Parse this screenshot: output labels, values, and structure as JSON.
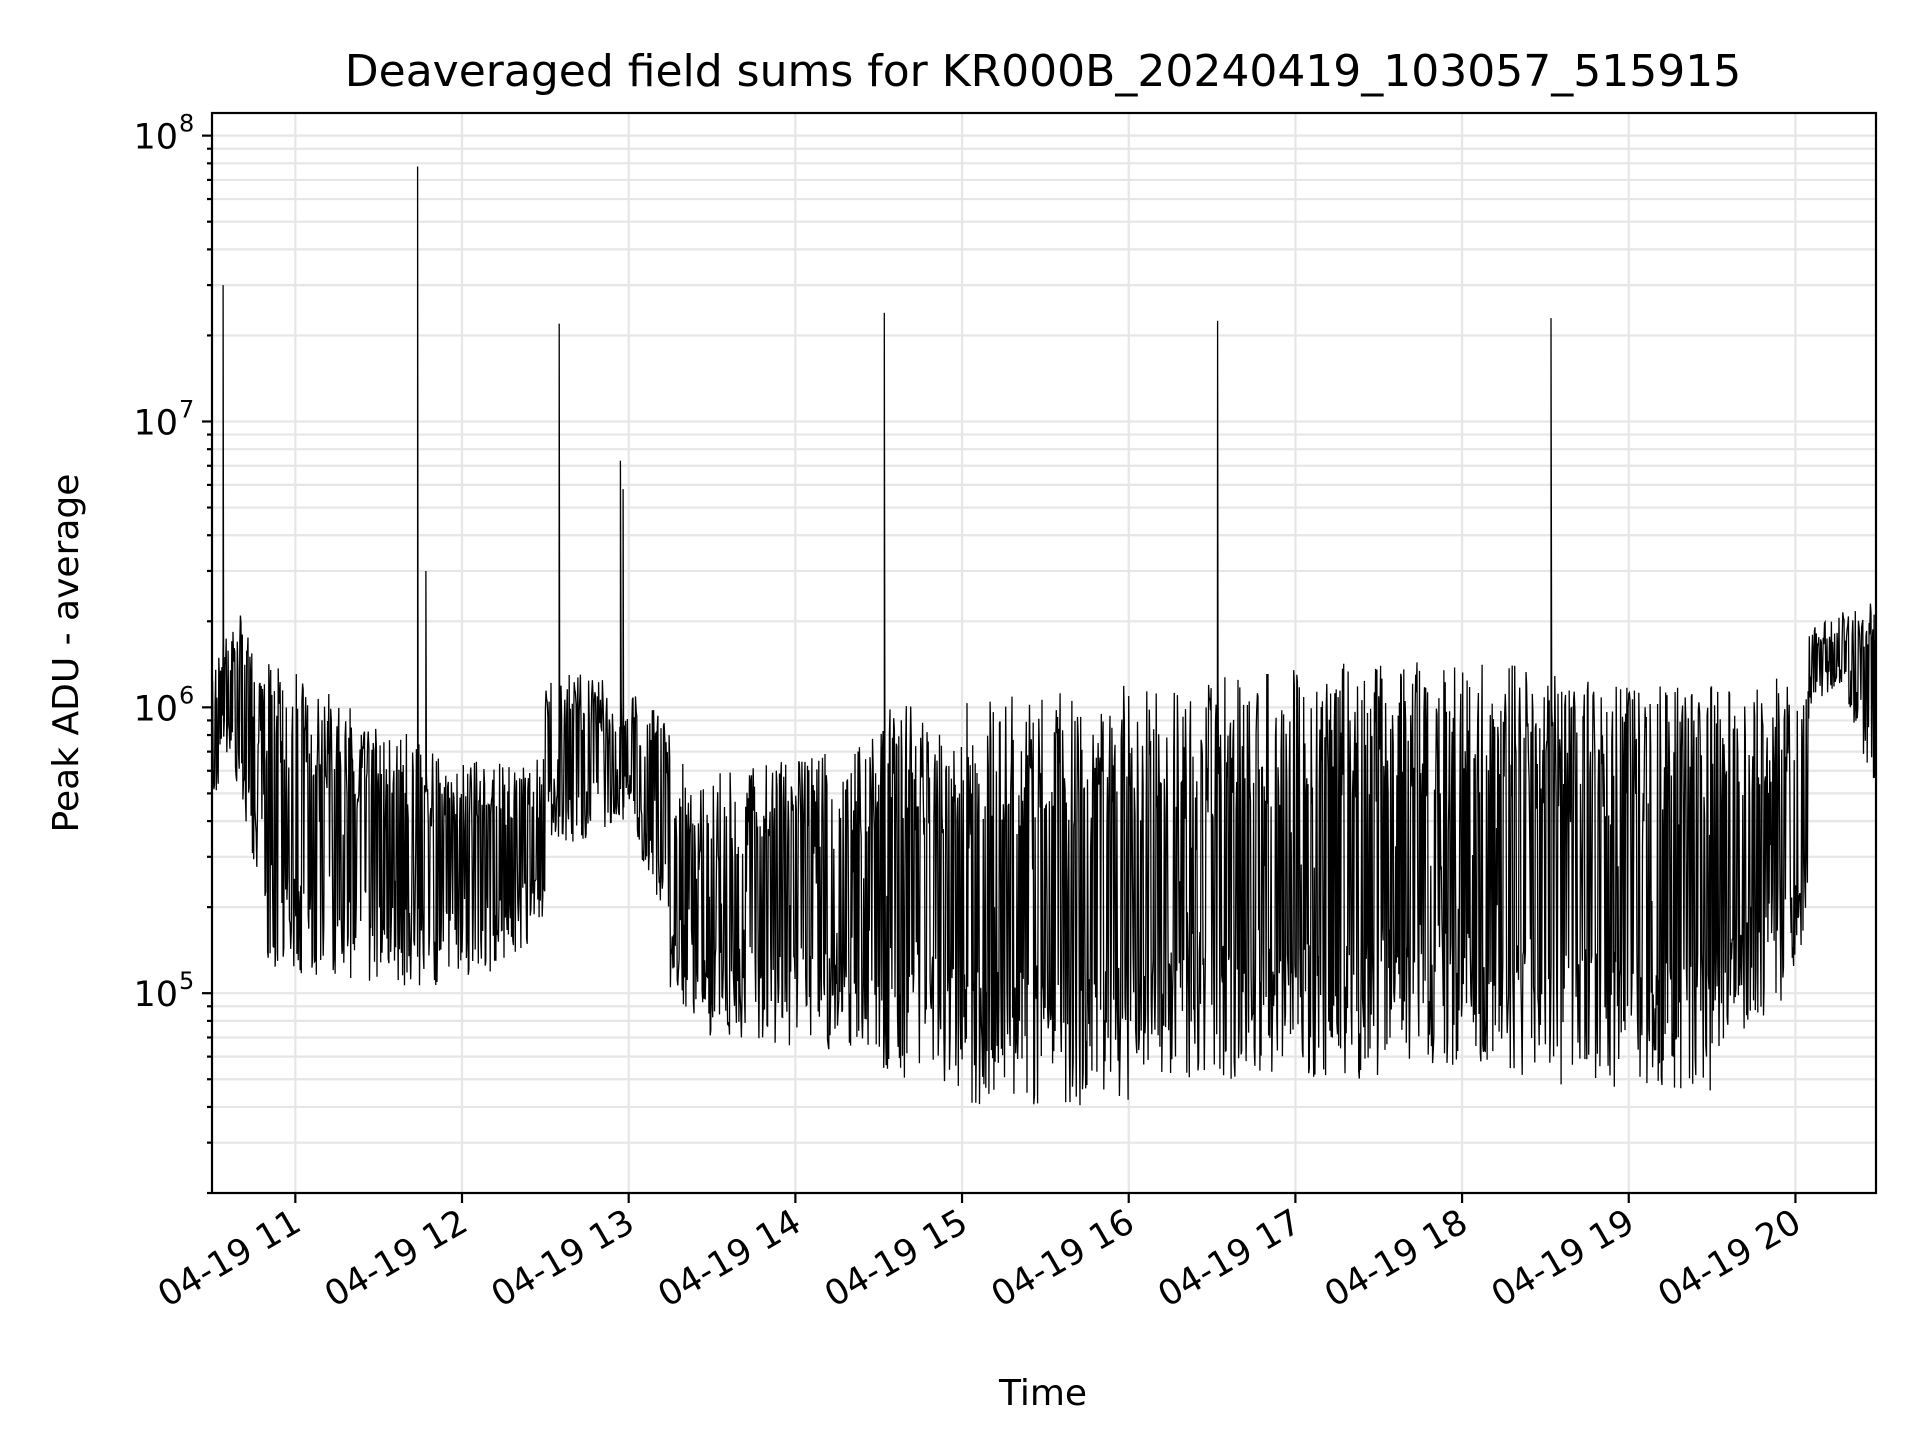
{
  "chart_data": {
    "type": "line",
    "title": "Deaveraged field sums for KR000B_20240419_103057_515915",
    "xlabel": "Time",
    "ylabel": "Peak ADU - average",
    "x_ticks": [
      "04-19 11",
      "04-19 12",
      "04-19 13",
      "04-19 14",
      "04-19 15",
      "04-19 16",
      "04-19 17",
      "04-19 18",
      "04-19 19",
      "04-19 20"
    ],
    "y_ticks": [
      {
        "base": "10",
        "exp": "5",
        "value": 100000
      },
      {
        "base": "10",
        "exp": "6",
        "value": 1000000
      },
      {
        "base": "10",
        "exp": "7",
        "value": 10000000
      },
      {
        "base": "10",
        "exp": "8",
        "value": 100000000
      }
    ],
    "xlim": [
      "2024-04-19 10:30",
      "2024-04-19 20:29"
    ],
    "ylim": [
      20000,
      120000000
    ],
    "yscale": "log",
    "grid": true,
    "line_color": "#000000",
    "spikes": [
      {
        "x": "2024-04-19 10:34",
        "y": 30000000
      },
      {
        "x": "2024-04-19 11:44",
        "y": 78000000
      },
      {
        "x": "2024-04-19 11:47",
        "y": 3000000
      },
      {
        "x": "2024-04-19 12:35",
        "y": 22000000
      },
      {
        "x": "2024-04-19 12:57",
        "y": 7300000
      },
      {
        "x": "2024-04-19 12:58",
        "y": 5800000
      },
      {
        "x": "2024-04-19 14:32",
        "y": 24000000
      },
      {
        "x": "2024-04-19 16:32",
        "y": 22500000
      },
      {
        "x": "2024-04-19 18:32",
        "y": 23000000
      }
    ],
    "segments": [
      {
        "x": [
          "2024-04-19 10:30",
          "2024-04-19 10:34",
          "2024-04-19 10:40",
          "2024-04-19 10:50"
        ],
        "y_high": [
          1500000,
          1800000,
          2200000,
          1200000
        ],
        "y_low": [
          380000,
          700000,
          500000,
          150000
        ]
      },
      {
        "x": [
          "2024-04-19 10:50",
          "2024-04-19 12:00",
          "2024-04-19 12:30"
        ],
        "y_high": [
          1500000,
          650000,
          700000
        ],
        "y_low": [
          120000,
          100000,
          160000
        ]
      },
      {
        "x": [
          "2024-04-19 12:30",
          "2024-04-19 13:00",
          "2024-04-19 13:15"
        ],
        "y_high": [
          1400000,
          1200000,
          900000
        ],
        "y_low": [
          300000,
          400000,
          150000
        ]
      },
      {
        "x": [
          "2024-04-19 13:15",
          "2024-04-19 13:30",
          "2024-04-19 14:30"
        ],
        "y_high": [
          700000,
          600000,
          800000
        ],
        "y_low": [
          100000,
          70000,
          60000
        ]
      },
      {
        "x": [
          "2024-04-19 14:30",
          "2024-04-19 15:00",
          "2024-04-19 16:00"
        ],
        "y_high": [
          1000000,
          1050000,
          1200000
        ],
        "y_low": [
          55000,
          40000,
          40000
        ]
      },
      {
        "x": [
          "2024-04-19 16:00",
          "2024-04-19 16:40",
          "2024-04-19 17:30"
        ],
        "y_high": [
          1150000,
          1300000,
          1500000
        ],
        "y_low": [
          45000,
          50000,
          50000
        ]
      },
      {
        "x": [
          "2024-04-19 17:30",
          "2024-04-19 18:00",
          "2024-04-19 18:30"
        ],
        "y_high": [
          1450000,
          1450000,
          1400000
        ],
        "y_low": [
          60000,
          55000,
          50000
        ]
      },
      {
        "x": [
          "2024-04-19 18:30",
          "2024-04-19 19:00",
          "2024-04-19 19:30"
        ],
        "y_high": [
          1300000,
          1200000,
          1200000
        ],
        "y_low": [
          45000,
          45000,
          45000
        ]
      },
      {
        "x": [
          "2024-04-19 19:30",
          "2024-04-19 20:00",
          "2024-04-19 20:05"
        ],
        "y_high": [
          1200000,
          1300000,
          1600000
        ],
        "y_low": [
          60000,
          100000,
          250000
        ]
      },
      {
        "x": [
          "2024-04-19 20:05",
          "2024-04-19 20:15",
          "2024-04-19 20:29"
        ],
        "y_high": [
          1900000,
          2100000,
          2500000
        ],
        "y_low": [
          1000000,
          1200000,
          500000
        ]
      }
    ]
  }
}
